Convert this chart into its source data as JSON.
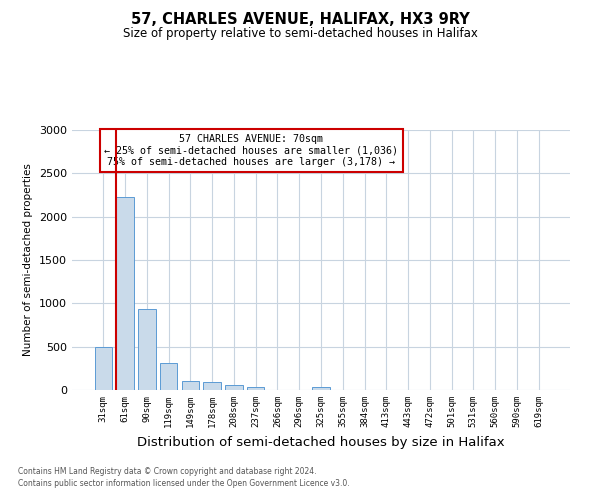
{
  "title": "57, CHARLES AVENUE, HALIFAX, HX3 9RY",
  "subtitle": "Size of property relative to semi-detached houses in Halifax",
  "xlabel": "Distribution of semi-detached houses by size in Halifax",
  "ylabel": "Number of semi-detached properties",
  "bin_labels": [
    "31sqm",
    "61sqm",
    "90sqm",
    "119sqm",
    "149sqm",
    "178sqm",
    "208sqm",
    "237sqm",
    "266sqm",
    "296sqm",
    "325sqm",
    "355sqm",
    "384sqm",
    "413sqm",
    "443sqm",
    "472sqm",
    "501sqm",
    "531sqm",
    "560sqm",
    "590sqm",
    "619sqm"
  ],
  "bar_values": [
    500,
    2230,
    940,
    310,
    100,
    90,
    55,
    30,
    0,
    0,
    30,
    0,
    0,
    0,
    0,
    0,
    0,
    0,
    0,
    0,
    0
  ],
  "bar_color": "#c9daea",
  "bar_edge_color": "#5b9bd5",
  "ylim": [
    0,
    3000
  ],
  "yticks": [
    0,
    500,
    1000,
    1500,
    2000,
    2500,
    3000
  ],
  "annotation_title": "57 CHARLES AVENUE: 70sqm",
  "annotation_line1": "← 25% of semi-detached houses are smaller (1,036)",
  "annotation_line2": "75% of semi-detached houses are larger (3,178) →",
  "annotation_box_color": "#ffffff",
  "annotation_box_edge": "#cc0000",
  "footnote1": "Contains HM Land Registry data © Crown copyright and database right 2024.",
  "footnote2": "Contains public sector information licensed under the Open Government Licence v3.0.",
  "grid_color": "#c8d4e0",
  "background_color": "#ffffff"
}
